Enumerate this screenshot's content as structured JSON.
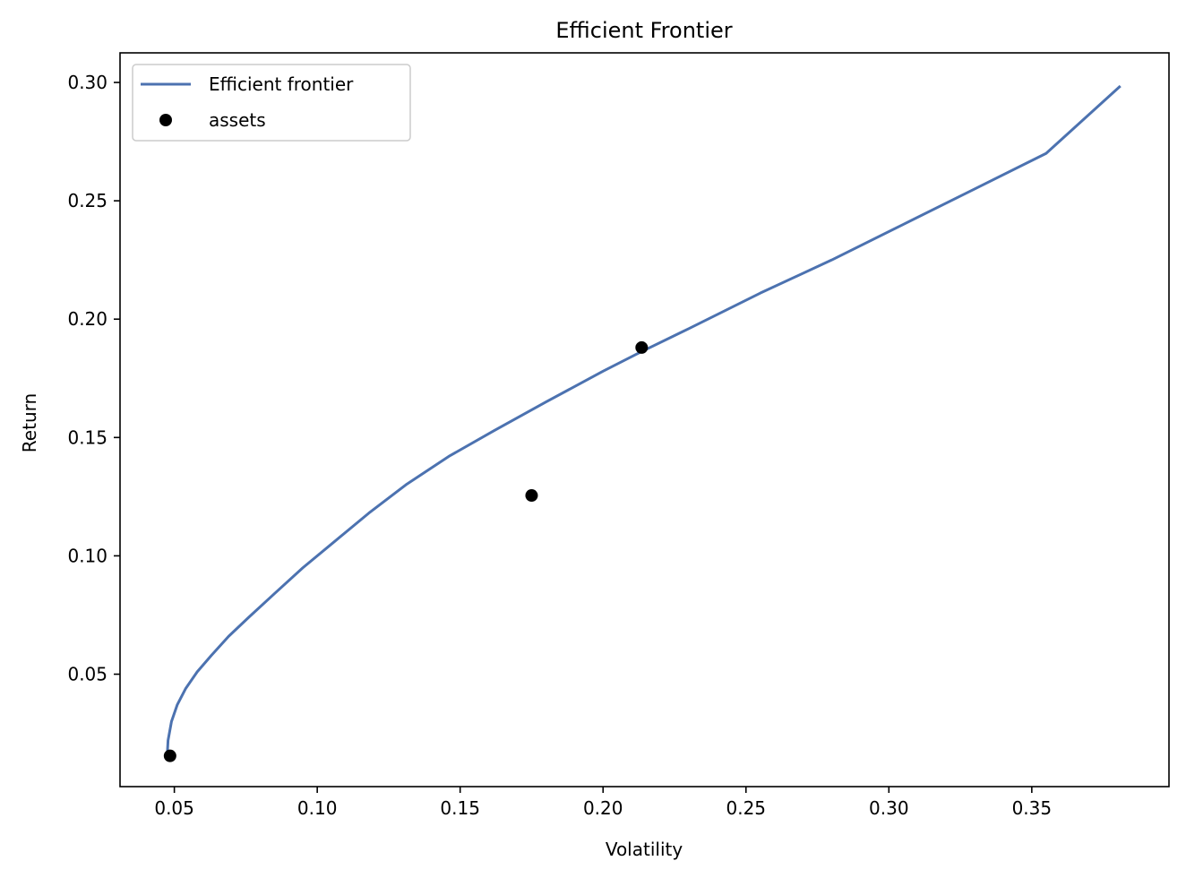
{
  "chart_data": {
    "type": "line",
    "title": "Efficient Frontier",
    "xlabel": "Volatility",
    "ylabel": "Return",
    "xlim": [
      0.031,
      0.398
    ],
    "ylim": [
      0.0025,
      0.3125
    ],
    "xticks": [
      0.05,
      0.1,
      0.15,
      0.2,
      0.25,
      0.3,
      0.35
    ],
    "xtick_labels": [
      "0.05",
      "0.10",
      "0.15",
      "0.20",
      "0.25",
      "0.30",
      "0.35"
    ],
    "yticks": [
      0.05,
      0.1,
      0.15,
      0.2,
      0.25,
      0.3
    ],
    "ytick_labels": [
      "0.05",
      "0.10",
      "0.15",
      "0.20",
      "0.25",
      "0.30"
    ],
    "grid": false,
    "legend_position": "top-left",
    "series": [
      {
        "name": "Efficient frontier",
        "kind": "line",
        "color": "#4c72b0",
        "x": [
          0.0475,
          0.0478,
          0.049,
          0.051,
          0.054,
          0.058,
          0.063,
          0.069,
          0.076,
          0.085,
          0.095,
          0.106,
          0.118,
          0.131,
          0.146,
          0.162,
          0.18,
          0.2,
          0.213,
          0.23,
          0.255,
          0.28,
          0.305,
          0.33,
          0.355,
          0.381
        ],
        "y": [
          0.0155,
          0.022,
          0.03,
          0.037,
          0.044,
          0.051,
          0.058,
          0.066,
          0.074,
          0.084,
          0.095,
          0.106,
          0.118,
          0.13,
          0.142,
          0.153,
          0.165,
          0.178,
          0.186,
          0.196,
          0.211,
          0.225,
          0.24,
          0.255,
          0.27,
          0.2985
        ]
      },
      {
        "name": "assets",
        "kind": "scatter",
        "color": "#000000",
        "x": [
          0.0485,
          0.175,
          0.2135
        ],
        "y": [
          0.0155,
          0.1255,
          0.188
        ]
      }
    ]
  }
}
